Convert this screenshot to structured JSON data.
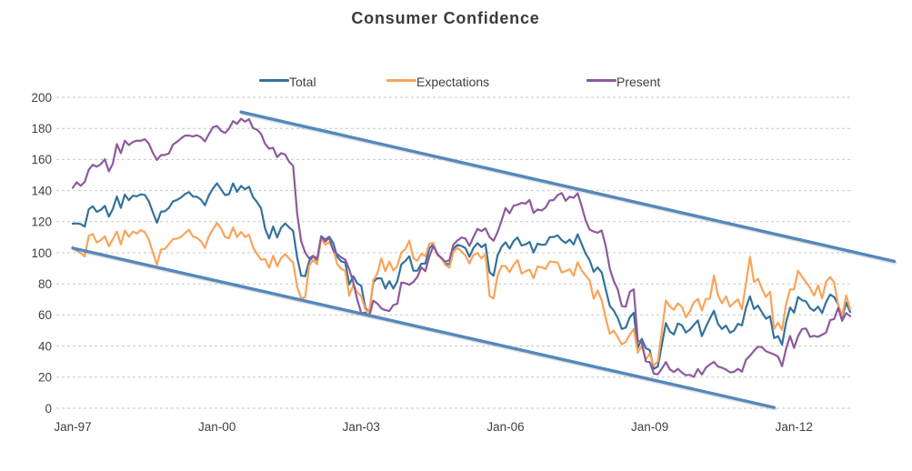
{
  "chart_data": {
    "type": "line",
    "title": "Consumer Confidence",
    "x_axis": {
      "start": "Jan-1997",
      "interval": "monthly",
      "n_points": 195,
      "ticks": [
        {
          "label": "Jan-97",
          "month_index": 0
        },
        {
          "label": "Jan-00",
          "month_index": 36
        },
        {
          "label": "Jan-03",
          "month_index": 72
        },
        {
          "label": "Jan-06",
          "month_index": 108
        },
        {
          "label": "Jan-09",
          "month_index": 144
        },
        {
          "label": "Jan-12",
          "month_index": 180
        }
      ]
    },
    "y_axis": {
      "ylim": [
        0,
        200
      ],
      "ticks": [
        0,
        20,
        40,
        60,
        80,
        100,
        120,
        140,
        160,
        180,
        200
      ]
    },
    "grid": "horizontal-dashed",
    "legend_position": "top",
    "colors": {
      "total": "#34729C",
      "expectations": "#F9A45A",
      "present": "#8D5A9E",
      "trendline": "#5588BB",
      "gridline": "#C7C7C7",
      "text": "#3F3F3F"
    },
    "series": [
      {
        "name": "Total",
        "color_key": "total",
        "values": [
          118.7,
          118.9,
          118.5,
          116.8,
          127.9,
          129.9,
          126.3,
          127.6,
          130.2,
          123.3,
          128.1,
          136.2,
          128.9,
          137.4,
          133.8,
          136.7,
          136.3,
          137.6,
          137.2,
          133.1,
          126.0,
          119.3,
          126.4,
          126.7,
          128.9,
          133.1,
          134.0,
          135.5,
          137.7,
          139.0,
          136.2,
          136.0,
          134.2,
          130.5,
          137.0,
          141.4,
          144.7,
          140.8,
          137.1,
          137.7,
          144.7,
          139.2,
          143.0,
          140.8,
          142.5,
          135.8,
          132.6,
          128.6,
          115.7,
          109.2,
          116.9,
          109.9,
          116.1,
          118.9,
          116.3,
          114.0,
          97.0,
          85.3,
          84.9,
          94.6,
          97.8,
          95.0,
          110.7,
          108.5,
          110.3,
          106.3,
          97.4,
          94.5,
          93.7,
          79.6,
          84.9,
          80.3,
          78.8,
          64.8,
          61.4,
          81.0,
          83.6,
          83.5,
          77.0,
          81.7,
          77.0,
          81.7,
          92.5,
          94.8,
          97.7,
          88.5,
          88.5,
          93.0,
          93.1,
          102.8,
          105.7,
          98.7,
          96.7,
          92.9,
          92.6,
          102.7,
          105.1,
          104.4,
          103.0,
          97.5,
          103.1,
          106.2,
          103.6,
          105.5,
          87.5,
          85.2,
          98.3,
          103.8,
          106.8,
          102.7,
          107.5,
          109.8,
          104.7,
          105.4,
          107.0,
          100.2,
          105.9,
          105.1,
          105.3,
          110.0,
          110.2,
          111.2,
          108.2,
          106.3,
          108.5,
          105.3,
          111.9,
          105.6,
          99.5,
          95.2,
          87.8,
          90.6,
          87.3,
          76.4,
          65.9,
          62.8,
          58.1,
          51.0,
          51.9,
          58.5,
          61.4,
          38.8,
          44.7,
          38.6,
          37.4,
          25.3,
          26.9,
          40.8,
          54.8,
          49.3,
          47.4,
          54.5,
          53.4,
          48.7,
          50.6,
          53.6,
          56.5,
          46.4,
          52.3,
          57.7,
          62.7,
          54.3,
          51.0,
          53.2,
          48.6,
          49.9,
          54.3,
          53.3,
          64.8,
          72.0,
          63.8,
          66.0,
          61.7,
          57.6,
          59.2,
          45.2,
          46.4,
          40.9,
          55.2,
          64.8,
          61.5,
          71.6,
          69.5,
          68.7,
          64.4,
          62.7,
          65.4,
          61.3,
          68.4,
          73.1,
          71.5,
          66.7,
          58.4,
          68.0,
          61.9
        ]
      },
      {
        "name": "Expectations",
        "color_key": "expectations",
        "values": [
          103.8,
          101.2,
          99.8,
          97.6,
          110.8,
          112.1,
          106.6,
          108.1,
          110.6,
          104.2,
          108.7,
          113.7,
          105.4,
          114.3,
          110.2,
          113.7,
          112.4,
          114.6,
          113.2,
          108.4,
          100.3,
          92.4,
          102.1,
          102.6,
          105.6,
          108.7,
          109.1,
          110.2,
          112.6,
          114.8,
          110.4,
          109.6,
          107.4,
          103.1,
          110.7,
          115.2,
          119.2,
          115.6,
          110.1,
          109.4,
          116.4,
          110.1,
          113.4,
          110.2,
          111.6,
          103.4,
          99.3,
          95.6,
          95.9,
          90.4,
          98.1,
          91.3,
          96.6,
          99.2,
          96.3,
          93.7,
          78.1,
          70.7,
          71.3,
          91.5,
          95.4,
          92.6,
          109.3,
          105.2,
          106.9,
          102.0,
          92.7,
          89.6,
          88.3,
          72.4,
          79.2,
          74.6,
          72.1,
          63.6,
          61.4,
          82.4,
          86.4,
          96.4,
          88.1,
          94.4,
          88.6,
          91.5,
          100.1,
          102.4,
          107.8,
          96.6,
          94.9,
          99.4,
          97.8,
          105.9,
          106.4,
          98.3,
          97.0,
          92.1,
          90.4,
          100.6,
          103.2,
          100.8,
          98.3,
          93.2,
          98.6,
          99.8,
          96.4,
          99.2,
          72.3,
          70.6,
          85.2,
          91.6,
          91.4,
          87.6,
          92.1,
          95.4,
          86.6,
          88.1,
          89.2,
          83.6,
          91.2,
          90.6,
          89.7,
          94.4,
          94.1,
          93.8,
          87.3,
          88.2,
          89.4,
          85.2,
          94.0,
          88.6,
          85.3,
          82.2,
          70.4,
          75.8,
          69.3,
          57.9,
          47.9,
          50.0,
          45.7,
          41.0,
          42.7,
          47.3,
          51.0,
          35.7,
          40.2,
          31.4,
          35.2,
          27.3,
          30.2,
          49.5,
          69.4,
          65.5,
          63.4,
          67.5,
          65.3,
          58.5,
          62.3,
          68.2,
          70.3,
          62.9,
          70.4,
          70.4,
          85.3,
          72.7,
          67.5,
          72.0,
          65.4,
          67.8,
          70.1,
          63.6,
          80.3,
          97.5,
          81.3,
          83.2,
          76.7,
          71.6,
          74.9,
          51.1,
          55.0,
          50.4,
          67.0,
          76.4,
          76.5,
          88.4,
          84.6,
          81.1,
          77.3,
          72.4,
          79.0,
          70.7,
          81.5,
          84.3,
          80.9,
          66.5,
          59.5,
          72.6,
          63.7
        ]
      },
      {
        "name": "Present",
        "color_key": "present",
        "values": [
          141.8,
          145.4,
          143.1,
          145.6,
          153.4,
          156.6,
          155.4,
          157.0,
          160.1,
          152.4,
          157.3,
          169.9,
          164.1,
          172.1,
          169.3,
          171.2,
          172.1,
          172.0,
          173.1,
          170.1,
          164.3,
          159.7,
          162.8,
          162.9,
          163.9,
          169.6,
          171.3,
          173.5,
          175.3,
          175.4,
          174.8,
          175.6,
          174.3,
          171.6,
          176.4,
          180.8,
          181.6,
          178.4,
          177.1,
          179.8,
          184.7,
          182.9,
          186.2,
          184.3,
          185.9,
          180.1,
          179.2,
          176.5,
          170.1,
          166.9,
          167.5,
          161.5,
          164.1,
          163.2,
          158.5,
          155.9,
          125.4,
          107.4,
          100.2,
          96.3,
          98.1,
          96.2,
          110.4,
          107.2,
          109.6,
          101.3,
          99.2,
          97.1,
          95.5,
          89.3,
          81.0,
          69.9,
          61.2,
          61.6,
          59.2,
          69.2,
          67.4,
          64.2,
          63.1,
          62.6,
          66.4,
          67.2,
          80.9,
          80.4,
          79.4,
          81.3,
          84.4,
          90.6,
          88.2,
          97.6,
          104.3,
          99.2,
          96.5,
          94.2,
          95.3,
          105.4,
          107.9,
          109.8,
          109.1,
          104.4,
          110.2,
          115.4,
          113.9,
          115.7,
          110.1,
          107.7,
          113.2,
          120.7,
          128.8,
          125.4,
          130.3,
          130.9,
          132.1,
          131.6,
          133.9,
          125.6,
          127.9,
          127.2,
          129.1,
          133.6,
          133.9,
          137.1,
          138.4,
          133.4,
          136.1,
          135.4,
          138.3,
          130.1,
          120.7,
          114.9,
          113.6,
          112.9,
          114.3,
          104.2,
          89.9,
          81.9,
          76.4,
          65.8,
          65.3,
          74.8,
          76.5,
          43.5,
          42.3,
          30.2,
          29.7,
          22.3,
          21.9,
          25.5,
          29.7,
          25.0,
          23.3,
          25.4,
          23.0,
          21.2,
          21.5,
          20.2,
          25.2,
          21.7,
          26.1,
          28.2,
          29.8,
          26.8,
          26.1,
          24.9,
          23.1,
          23.4,
          25.4,
          23.5,
          31.1,
          33.8,
          36.9,
          39.6,
          39.3,
          36.6,
          35.7,
          34.6,
          33.3,
          27.1,
          38.3,
          46.5,
          38.8,
          46.4,
          51.0,
          51.2,
          45.9,
          46.6,
          45.9,
          47.3,
          48.7,
          56.7,
          57.4,
          64.6,
          56.2,
          61.2,
          59.2
        ]
      }
    ],
    "annotations": [
      {
        "id": "upper-channel-trendline",
        "type": "line",
        "from": {
          "month_index": 42,
          "value": 190.5
        },
        "to": {
          "month_index": 205,
          "value": 94.5
        }
      },
      {
        "id": "lower-channel-trendline",
        "type": "line",
        "from": {
          "month_index": 0,
          "value": 103.0
        },
        "to": {
          "month_index": 175,
          "value": 0.5
        }
      }
    ]
  }
}
